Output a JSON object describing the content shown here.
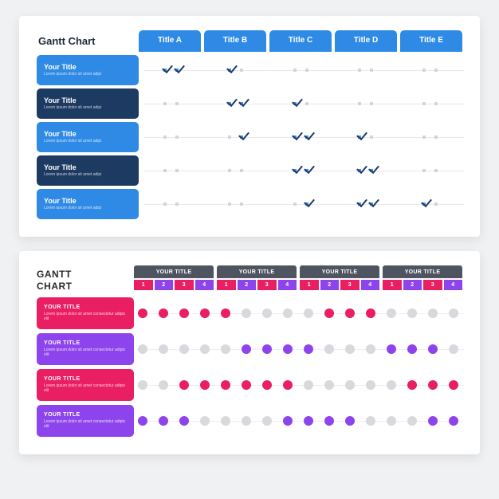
{
  "chart1": {
    "title": "Gantt Chart",
    "header_color": "#2f8ae6",
    "header_first_color": "#2f8ae6",
    "check_color": "#1d3a63",
    "active_dot_color": "#3b93ec",
    "columns": [
      "Title A",
      "Title B",
      "Title C",
      "Title D",
      "Title E"
    ],
    "row_colors": [
      "#2f8ae6",
      "#1d3a63",
      "#2f8ae6",
      "#1d3a63",
      "#2f8ae6"
    ],
    "row_titles": [
      "Your Title",
      "Your Title",
      "Your Title",
      "Your Title",
      "Your Title"
    ],
    "row_sub": "Lorem ipsum dolor sit amet adipi",
    "dots_per_cell": 2,
    "checks": [
      [
        [
          1,
          1
        ],
        [
          1,
          0
        ],
        [
          0,
          0
        ],
        [
          0,
          0
        ],
        [
          0,
          0
        ]
      ],
      [
        [
          0,
          0
        ],
        [
          1,
          1
        ],
        [
          1,
          0
        ],
        [
          0,
          0
        ],
        [
          0,
          0
        ]
      ],
      [
        [
          0,
          0
        ],
        [
          0,
          1
        ],
        [
          1,
          1
        ],
        [
          1,
          0
        ],
        [
          0,
          0
        ]
      ],
      [
        [
          0,
          0
        ],
        [
          0,
          0
        ],
        [
          1,
          1
        ],
        [
          1,
          1
        ],
        [
          0,
          0
        ]
      ],
      [
        [
          0,
          0
        ],
        [
          0,
          0
        ],
        [
          0,
          1
        ],
        [
          1,
          1
        ],
        [
          1,
          0
        ]
      ]
    ]
  },
  "chart2": {
    "title_line1": "GANTT",
    "title_line2": "CHART",
    "group_header_color": "#4f5560",
    "group_title": "YOUR TITLE",
    "sub_labels": [
      "1",
      "2",
      "3",
      "4"
    ],
    "sub_colors": [
      "#e91e63",
      "#8e44ec",
      "#e91e63",
      "#8e44ec"
    ],
    "row_titles": [
      "YOUR TITLE",
      "YOUR TITLE",
      "YOUR TITLE",
      "YOUR TITLE"
    ],
    "row_sub": "Lorem ipsum dolor sit amet consectetur adipis elit",
    "row_colors": [
      "#e91e63",
      "#8e44ec",
      "#e91e63",
      "#8e44ec"
    ],
    "inactive_dot": "#d8d9dd",
    "pink": "#e91e63",
    "purple": "#8e44ec",
    "cells": [
      [
        [
          "p",
          "p",
          "p",
          "p"
        ],
        [
          "p",
          "0",
          "0",
          "0"
        ],
        [
          "0",
          "p",
          "p",
          "p"
        ],
        [
          "0",
          "0",
          "0",
          "0"
        ]
      ],
      [
        [
          "0",
          "0",
          "0",
          "0"
        ],
        [
          "0",
          "v",
          "v",
          "v"
        ],
        [
          "v",
          "0",
          "0",
          "0"
        ],
        [
          "v",
          "v",
          "v",
          "0"
        ]
      ],
      [
        [
          "0",
          "0",
          "p",
          "p"
        ],
        [
          "p",
          "p",
          "p",
          "p"
        ],
        [
          "0",
          "0",
          "0",
          "0"
        ],
        [
          "0",
          "p",
          "p",
          "p"
        ]
      ],
      [
        [
          "v",
          "v",
          "v",
          "0"
        ],
        [
          "0",
          "0",
          "0",
          "v"
        ],
        [
          "v",
          "v",
          "v",
          "0"
        ],
        [
          "0",
          "0",
          "v",
          "v"
        ]
      ]
    ]
  }
}
